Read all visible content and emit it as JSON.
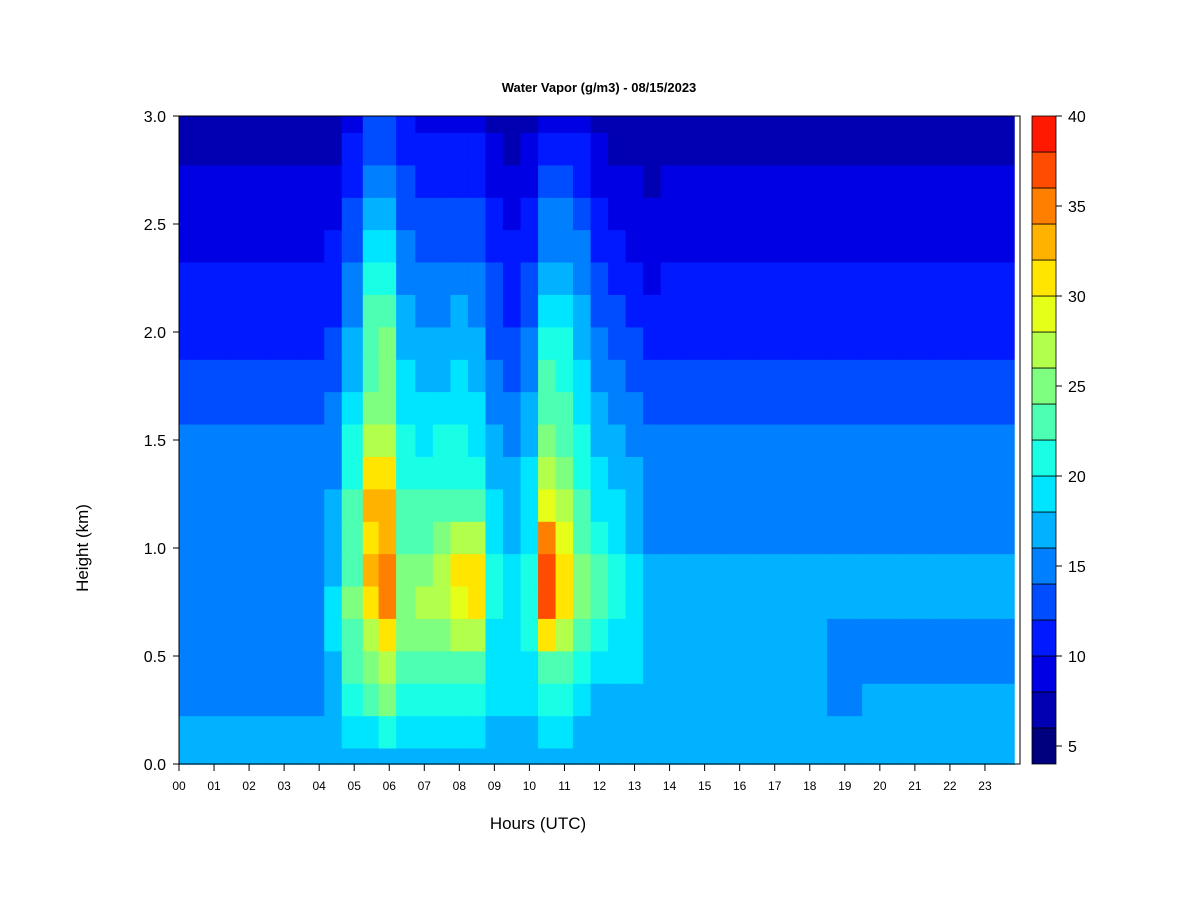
{
  "chart_data": {
    "type": "heatmap",
    "title": "Water Vapor (g/m3) - 08/15/2023",
    "xlabel": "Hours (UTC)",
    "ylabel": "Height (km)",
    "xlim": [
      0,
      24
    ],
    "ylim": [
      0,
      3
    ],
    "x_ticks": [
      "00",
      "01",
      "02",
      "03",
      "04",
      "05",
      "06",
      "07",
      "08",
      "09",
      "10",
      "11",
      "12",
      "13",
      "14",
      "15",
      "16",
      "17",
      "18",
      "19",
      "20",
      "21",
      "22",
      "23"
    ],
    "y_ticks": [
      "0.0",
      "0.5",
      "1.0",
      "1.5",
      "2.0",
      "2.5",
      "3.0"
    ],
    "colorbar": {
      "min": 4,
      "max": 40,
      "step": 2,
      "tick_labels": [
        "5",
        "10",
        "15",
        "20",
        "25",
        "30",
        "35",
        "40"
      ],
      "colors": [
        "#00007f",
        "#0000b2",
        "#0000e5",
        "#0019ff",
        "#004cff",
        "#007fff",
        "#00b2ff",
        "#00e5ff",
        "#19ffe5",
        "#4cffb2",
        "#7fff7f",
        "#b2ff4c",
        "#e5ff19",
        "#ffe500",
        "#ffb200",
        "#ff7f00",
        "#ff4c00",
        "#ff1900",
        "#e50000",
        "#b20000",
        "#7f0000"
      ]
    },
    "x_hours": [
      0,
      1,
      2,
      3,
      4,
      4.3,
      5,
      5.5,
      5.9,
      6.5,
      7,
      7.5,
      8,
      8.5,
      9,
      9.5,
      10,
      10.5,
      11,
      11.5,
      12,
      12.5,
      13,
      13.5,
      14,
      15,
      16,
      17,
      18,
      19,
      20,
      21,
      22,
      23,
      24
    ],
    "heights_km": [
      0.0,
      0.15,
      0.3,
      0.45,
      0.6,
      0.75,
      0.9,
      1.05,
      1.2,
      1.35,
      1.5,
      1.65,
      1.8,
      1.95,
      2.1,
      2.25,
      2.4,
      2.55,
      2.7,
      2.85,
      3.0
    ],
    "values": [
      [
        16,
        16,
        16,
        16,
        16,
        16,
        16,
        16,
        16,
        16,
        16,
        16,
        16,
        16,
        16,
        16,
        16,
        16,
        16,
        16,
        16,
        16,
        16,
        16,
        16,
        16,
        16,
        16,
        16,
        16,
        16,
        16,
        16,
        16,
        16
      ],
      [
        16,
        16,
        16,
        16,
        16,
        16,
        19,
        19,
        21,
        18,
        18,
        18,
        19,
        19,
        17,
        17,
        17,
        18,
        18,
        17,
        17,
        17,
        17,
        16,
        16,
        16,
        16,
        16,
        16,
        16,
        16,
        16,
        16,
        16,
        16
      ],
      [
        15,
        15,
        15,
        15,
        15,
        17,
        21,
        22,
        24,
        21,
        20,
        20,
        20,
        20,
        18,
        18,
        18,
        20,
        20,
        18,
        17,
        17,
        17,
        16,
        16,
        16,
        16,
        16,
        16,
        15,
        16,
        16,
        16,
        16,
        16
      ],
      [
        15,
        15,
        15,
        15,
        15,
        17,
        22,
        24,
        27,
        23,
        22,
        23,
        23,
        23,
        18,
        18,
        19,
        23,
        22,
        20,
        19,
        18,
        18,
        16,
        16,
        16,
        16,
        16,
        16,
        15,
        15,
        15,
        15,
        15,
        15
      ],
      [
        15,
        15,
        15,
        15,
        15,
        18,
        23,
        27,
        30,
        24,
        24,
        25,
        26,
        27,
        19,
        18,
        20,
        31,
        27,
        23,
        20,
        19,
        19,
        17,
        16,
        16,
        16,
        16,
        16,
        15,
        15,
        15,
        15,
        15,
        15
      ],
      [
        15,
        15,
        15,
        15,
        15,
        18,
        24,
        31,
        34,
        25,
        26,
        27,
        29,
        30,
        21,
        19,
        21,
        37,
        31,
        25,
        22,
        21,
        19,
        17,
        16,
        16,
        16,
        16,
        16,
        16,
        16,
        16,
        16,
        16,
        16
      ],
      [
        15,
        15,
        15,
        15,
        15,
        17,
        23,
        32,
        34,
        24,
        25,
        27,
        30,
        30,
        20,
        18,
        20,
        37,
        31,
        25,
        22,
        21,
        18,
        16,
        16,
        16,
        16,
        16,
        16,
        16,
        16,
        16,
        16,
        16,
        16
      ],
      [
        15,
        15,
        15,
        15,
        15,
        16,
        22,
        31,
        33,
        23,
        23,
        25,
        26,
        26,
        19,
        17,
        19,
        34,
        28,
        23,
        20,
        19,
        17,
        15,
        15,
        15,
        15,
        15,
        15,
        15,
        15,
        15,
        15,
        15,
        15
      ],
      [
        15,
        15,
        15,
        15,
        15,
        16,
        22,
        32,
        33,
        22,
        22,
        22,
        23,
        23,
        18,
        17,
        18,
        29,
        26,
        22,
        19,
        18,
        16,
        15,
        15,
        15,
        15,
        15,
        15,
        15,
        15,
        15,
        15,
        15,
        15
      ],
      [
        15,
        15,
        15,
        15,
        14,
        15,
        21,
        30,
        31,
        21,
        20,
        21,
        21,
        20,
        17,
        16,
        18,
        27,
        25,
        21,
        18,
        17,
        16,
        15,
        14,
        14,
        14,
        14,
        14,
        14,
        14,
        14,
        14,
        14,
        14
      ],
      [
        14,
        14,
        14,
        14,
        14,
        15,
        20,
        26,
        27,
        20,
        19,
        20,
        20,
        19,
        16,
        15,
        17,
        24,
        23,
        20,
        17,
        16,
        15,
        14,
        14,
        14,
        14,
        14,
        14,
        14,
        14,
        14,
        14,
        14,
        14
      ],
      [
        13,
        13,
        13,
        13,
        13,
        14,
        18,
        24,
        25,
        19,
        18,
        18,
        19,
        18,
        15,
        14,
        16,
        23,
        22,
        19,
        16,
        15,
        14,
        13,
        13,
        13,
        13,
        13,
        13,
        13,
        13,
        13,
        13,
        13,
        13
      ],
      [
        12,
        12,
        12,
        12,
        12,
        13,
        17,
        23,
        24,
        18,
        17,
        17,
        18,
        17,
        14,
        13,
        15,
        22,
        21,
        18,
        15,
        14,
        13,
        12,
        12,
        12,
        12,
        12,
        12,
        12,
        12,
        12,
        12,
        12,
        12
      ],
      [
        11,
        11,
        11,
        11,
        11,
        12,
        16,
        23,
        24,
        17,
        16,
        17,
        17,
        16,
        13,
        12,
        14,
        21,
        20,
        17,
        14,
        13,
        12,
        11,
        11,
        11,
        11,
        11,
        11,
        11,
        11,
        11,
        11,
        11,
        11
      ],
      [
        10,
        10,
        10,
        10,
        10,
        11,
        15,
        22,
        22,
        16,
        15,
        15,
        16,
        15,
        12,
        11,
        13,
        19,
        19,
        16,
        13,
        12,
        11,
        10,
        10,
        10,
        10,
        10,
        10,
        10,
        10,
        10,
        10,
        10,
        10
      ],
      [
        10,
        10,
        10,
        10,
        10,
        11,
        14,
        20,
        20,
        15,
        14,
        14,
        14,
        14,
        12,
        11,
        12,
        17,
        17,
        15,
        12,
        11,
        10,
        9,
        10,
        10,
        10,
        10,
        10,
        10,
        10,
        10,
        10,
        10,
        10
      ],
      [
        9,
        9,
        9,
        9,
        9,
        10,
        13,
        18,
        18,
        14,
        13,
        13,
        13,
        13,
        11,
        10,
        11,
        15,
        15,
        14,
        11,
        10,
        9,
        8,
        9,
        9,
        9,
        9,
        9,
        9,
        9,
        9,
        9,
        9,
        9
      ],
      [
        8,
        8,
        8,
        8,
        8,
        9,
        12,
        17,
        17,
        13,
        12,
        12,
        12,
        12,
        10,
        9,
        10,
        14,
        14,
        12,
        10,
        9,
        8,
        8,
        8,
        8,
        8,
        8,
        8,
        8,
        8,
        8,
        8,
        8,
        8
      ],
      [
        8,
        8,
        8,
        8,
        8,
        8,
        11,
        15,
        15,
        12,
        11,
        11,
        11,
        11,
        9,
        8,
        9,
        12,
        12,
        11,
        9,
        8,
        8,
        7,
        8,
        8,
        8,
        8,
        8,
        8,
        8,
        8,
        8,
        8,
        8
      ],
      [
        7,
        7,
        7,
        7,
        7,
        7,
        10,
        13,
        13,
        11,
        10,
        10,
        10,
        10,
        8,
        7,
        8,
        11,
        11,
        10,
        8,
        7,
        7,
        6,
        7,
        7,
        7,
        7,
        6,
        7,
        7,
        7,
        7,
        7,
        7
      ],
      [
        6,
        6,
        6,
        6,
        6,
        6,
        9,
        12,
        12,
        10,
        9,
        9,
        9,
        8,
        7,
        6,
        7,
        9,
        9,
        8,
        7,
        6,
        6,
        6,
        6,
        6,
        6,
        6,
        6,
        6,
        6,
        6,
        6,
        6,
        6
      ]
    ]
  }
}
